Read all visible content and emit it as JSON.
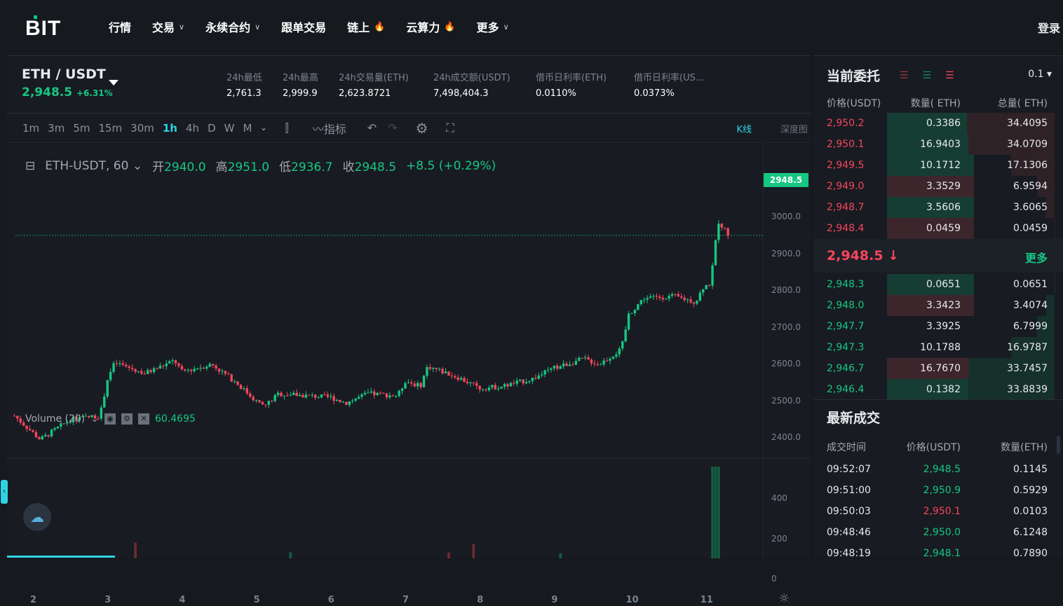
{
  "nav": {
    "logo": "BIT",
    "items": [
      {
        "label": "行情"
      },
      {
        "label": "交易",
        "dropdown": true
      },
      {
        "label": "永续合约",
        "dropdown": true
      },
      {
        "label": "跟单交易"
      },
      {
        "label": "链上",
        "hot": true
      },
      {
        "label": "云算力",
        "hot": true
      },
      {
        "label": "更多",
        "dropdown": true
      }
    ],
    "login": "登录"
  },
  "ticker": {
    "pair": "ETH / USDT",
    "price": "2,948.5",
    "change": "+6.31%",
    "stats": [
      {
        "label": "24h最低",
        "value": "2,761.3"
      },
      {
        "label": "24h最高",
        "value": "2,999.9"
      },
      {
        "label": "24h交易量(ETH)",
        "value": "2,623.8721"
      },
      {
        "label": "24h成交额(USDT)",
        "value": "7,498,404.3"
      },
      {
        "label": "借币日利率(ETH)",
        "value": "0.0110%"
      },
      {
        "label": "借币日利率(US...",
        "value": "0.0373%"
      }
    ]
  },
  "toolbar": {
    "timeframes": [
      "1m",
      "3m",
      "5m",
      "15m",
      "30m",
      "1h",
      "4h",
      "D",
      "W",
      "M"
    ],
    "active": "1h",
    "indicators": "指标",
    "kline": "K线",
    "depth": "深度图"
  },
  "chart_data": {
    "type": "candlestick",
    "symbol": "ETH-USDT, 60",
    "ohlc": {
      "open_label": "开",
      "open": "2940.0",
      "high_label": "高",
      "high": "2951.0",
      "low_label": "低",
      "low": "2936.7",
      "close_label": "收",
      "close": "2948.5",
      "change": "+8.5 (+0.29%)"
    },
    "last_price": "2948.5",
    "y_ticks": [
      "3000.0",
      "2900.0",
      "2800.0",
      "2700.0",
      "2600.0",
      "2500.0",
      "2400.0"
    ],
    "x_ticks": [
      "2",
      "3",
      "4",
      "5",
      "6",
      "7",
      "8",
      "9",
      "10",
      "11"
    ],
    "price_path": [
      [
        1.75,
        2460
      ],
      [
        2.1,
        2395
      ],
      [
        2.5,
        2450
      ],
      [
        2.9,
        2460
      ],
      [
        3.0,
        2560
      ],
      [
        3.1,
        2605
      ],
      [
        3.5,
        2575
      ],
      [
        3.9,
        2610
      ],
      [
        4.0,
        2580
      ],
      [
        4.4,
        2600
      ],
      [
        4.7,
        2555
      ],
      [
        5.0,
        2500
      ],
      [
        5.1,
        2485
      ],
      [
        5.3,
        2520
      ],
      [
        6.0,
        2510
      ],
      [
        6.2,
        2495
      ],
      [
        6.5,
        2520
      ],
      [
        6.9,
        2515
      ],
      [
        7.0,
        2555
      ],
      [
        7.2,
        2540
      ],
      [
        7.3,
        2595
      ],
      [
        7.7,
        2565
      ],
      [
        8.0,
        2535
      ],
      [
        8.3,
        2540
      ],
      [
        8.7,
        2560
      ],
      [
        9.0,
        2590
      ],
      [
        9.4,
        2615
      ],
      [
        9.6,
        2600
      ],
      [
        9.9,
        2640
      ],
      [
        10.0,
        2735
      ],
      [
        10.2,
        2780
      ],
      [
        10.6,
        2785
      ],
      [
        10.9,
        2770
      ],
      [
        11.0,
        2810
      ],
      [
        11.1,
        2820
      ],
      [
        11.2,
        2990
      ],
      [
        11.35,
        2948.5
      ]
    ],
    "volume": {
      "label": "Volume (20)",
      "value": "60.4695",
      "y_ticks": [
        "400",
        "200",
        "0"
      ]
    }
  },
  "orderbook": {
    "title": "当前委托",
    "precision": "0.1",
    "headers": [
      "价格(USDT)",
      "数量( ETH)",
      "总量( ETH)"
    ],
    "asks": [
      [
        "2,950.2",
        "0.3386",
        "34.4095"
      ],
      [
        "2,950.1",
        "16.9403",
        "34.0709"
      ],
      [
        "2,949.5",
        "10.1712",
        "17.1306"
      ],
      [
        "2,949.0",
        "3.3529",
        "6.9594"
      ],
      [
        "2,948.7",
        "3.5606",
        "3.6065"
      ],
      [
        "2,948.4",
        "0.0459",
        "0.0459"
      ]
    ],
    "last": "2,948.5",
    "more": "更多",
    "bids": [
      [
        "2,948.3",
        "0.0651",
        "0.0651"
      ],
      [
        "2,948.0",
        "3.3423",
        "3.4074"
      ],
      [
        "2,947.7",
        "3.3925",
        "6.7999"
      ],
      [
        "2,947.3",
        "10.1788",
        "16.9787"
      ],
      [
        "2,946.7",
        "16.7670",
        "33.7457"
      ],
      [
        "2,946.4",
        "0.1382",
        "33.8839"
      ]
    ]
  },
  "trades": {
    "title": "最新成交",
    "headers": [
      "成交时间",
      "价格(USDT)",
      "数量(ETH)"
    ],
    "rows": [
      [
        "09:52:07",
        "2,948.5",
        "0.1145",
        "buy"
      ],
      [
        "09:51:00",
        "2,950.9",
        "0.5929",
        "buy"
      ],
      [
        "09:50:03",
        "2,950.1",
        "0.0103",
        "sell"
      ],
      [
        "09:48:46",
        "2,950.0",
        "6.1248",
        "buy"
      ],
      [
        "09:48:19",
        "2,948.1",
        "0.7890",
        "buy"
      ]
    ]
  },
  "colors": {
    "up": "#16c784",
    "down": "#f6465d",
    "accent": "#2ed3e6"
  }
}
